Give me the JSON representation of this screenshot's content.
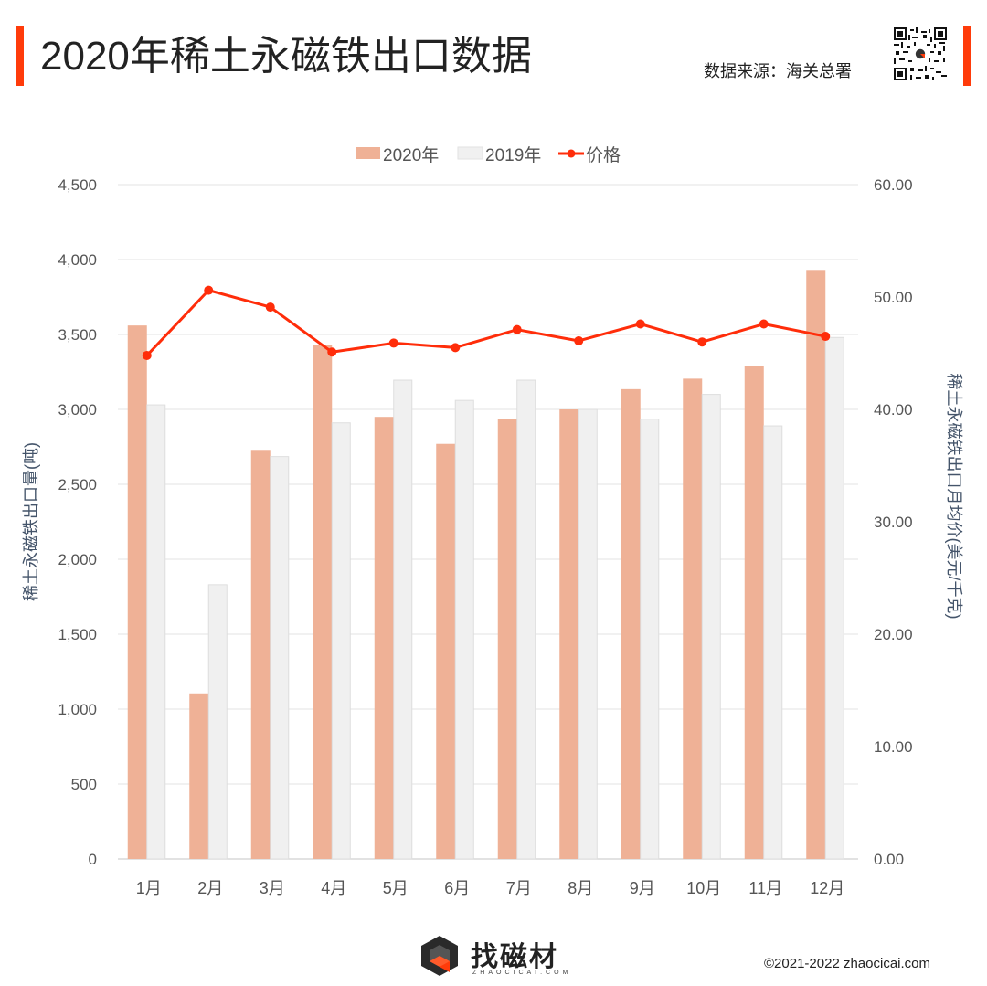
{
  "header": {
    "title": "2020年稀土永磁铁出口数据",
    "source": "数据来源：海关总署",
    "accent_color": "#ff3b0a"
  },
  "footer": {
    "brand": "找磁材",
    "brand_sub": "ZHAOCICAI.COM",
    "copyright": "©2021-2022 zhaocicai.com"
  },
  "chart_data": {
    "type": "bar",
    "title": "",
    "categories": [
      "1月",
      "2月",
      "3月",
      "4月",
      "5月",
      "6月",
      "7月",
      "8月",
      "9月",
      "10月",
      "11月",
      "12月"
    ],
    "series": [
      {
        "name": "2020年",
        "type": "bar",
        "axis": "left",
        "color": "#efb196",
        "values": [
          3560,
          1105,
          2730,
          3430,
          2950,
          2770,
          2935,
          3000,
          3135,
          3205,
          3290,
          3925
        ]
      },
      {
        "name": "2019年",
        "type": "bar",
        "axis": "left",
        "color": "#f0f0f0",
        "values": [
          3030,
          1830,
          2685,
          2910,
          3195,
          3060,
          3195,
          3000,
          2935,
          3100,
          2890,
          3480
        ]
      },
      {
        "name": "价格",
        "type": "line",
        "axis": "right",
        "color": "#ff2d0a",
        "values": [
          44.8,
          50.6,
          49.1,
          45.1,
          45.9,
          45.5,
          47.1,
          46.1,
          47.6,
          46.0,
          47.6,
          46.5
        ]
      }
    ],
    "ylabel": "稀土永磁铁出口量(吨)",
    "ylabel_right": "稀土永磁铁出口月均价(美元/千克)",
    "ylim": [
      0,
      4500
    ],
    "ylim_right": [
      0,
      60
    ],
    "yticks": [
      0,
      500,
      1000,
      1500,
      2000,
      2500,
      3000,
      3500,
      4000,
      4500
    ],
    "yticks_right": [
      0,
      10,
      20,
      30,
      40,
      50,
      60
    ],
    "ytick_labels": [
      "0",
      "500",
      "1,000",
      "1,500",
      "2,000",
      "2,500",
      "3,000",
      "3,500",
      "4,000",
      "4,500"
    ],
    "ytick_labels_right": [
      "0.00",
      "10.00",
      "20.00",
      "30.00",
      "40.00",
      "50.00",
      "60.00"
    ],
    "grid": true,
    "legend": "top-center"
  }
}
